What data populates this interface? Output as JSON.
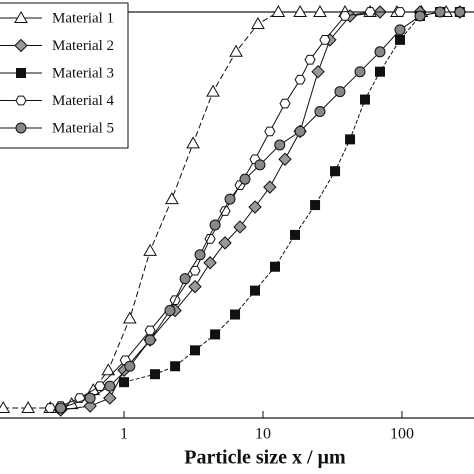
{
  "chart_data": {
    "type": "line",
    "x_label": "Particle size x / µm",
    "xscale": "log",
    "xlim": [
      0.128,
      330
    ],
    "ylim": [
      -2,
      100
    ],
    "xticks": [
      1,
      10,
      100
    ],
    "legend": "upper left",
    "series": [
      {
        "name": "Material 1",
        "color": "#ffffff",
        "marker": "triangle",
        "x": [
          0.135,
          0.204,
          0.294,
          0.42,
          0.6,
          0.77,
          1.1,
          1.54,
          2.21,
          3.14,
          4.37,
          6.4,
          9.2,
          12.9,
          18.5,
          25.7,
          38.9,
          59,
          92,
          138,
          208
        ],
        "values": [
          0.5,
          0.5,
          0.5,
          1.5,
          5,
          10,
          23,
          40,
          53,
          67,
          80,
          90,
          97,
          100,
          100,
          100,
          100,
          100,
          100,
          100,
          100
        ]
      },
      {
        "name": "Material 2",
        "color": "#999999",
        "marker": "diamond",
        "x": [
          0.35,
          0.57,
          0.79,
          1.0,
          1.54,
          2.33,
          3.24,
          4.16,
          5.33,
          6.83,
          8.76,
          11.2,
          14.4,
          18.5,
          24.9,
          30.3,
          42.3,
          69.5,
          135,
          261
        ],
        "values": [
          0,
          1,
          3,
          10,
          17.6,
          25,
          31,
          37,
          42,
          46,
          51,
          56,
          63,
          70,
          85,
          93,
          99,
          100,
          100,
          100
        ]
      },
      {
        "name": "Material 3",
        "color": "#111111",
        "marker": "square",
        "x": [
          1.0,
          1.67,
          2.33,
          3.24,
          4.52,
          6.29,
          8.76,
          12.2,
          17.0,
          23.7,
          33.0,
          42.3,
          54.2,
          69.5,
          96.8,
          135,
          188,
          261
        ],
        "values": [
          7,
          9,
          11,
          15,
          19,
          24,
          30,
          36,
          44,
          51.5,
          60,
          68,
          78,
          85,
          93,
          99,
          100,
          100
        ]
      },
      {
        "name": "Material 4",
        "color": "#ffffff",
        "marker": "hexagon",
        "x": [
          0.294,
          0.35,
          0.48,
          0.67,
          1.02,
          1.54,
          2.33,
          3.24,
          4.16,
          5.33,
          6.83,
          8.76,
          11.2,
          14.4,
          18.5,
          21.8,
          27.9,
          38.9,
          59,
          96.8,
          188
        ],
        "values": [
          0.5,
          1,
          3,
          6,
          12.5,
          20,
          27.6,
          35,
          43,
          50,
          56.5,
          63,
          70,
          77,
          83,
          88,
          93,
          99,
          100,
          100,
          100
        ]
      },
      {
        "name": "Material 5",
        "color": "#888888",
        "marker": "circle",
        "x": [
          0.35,
          0.57,
          0.79,
          1.1,
          1.54,
          2.14,
          2.75,
          3.52,
          4.52,
          5.79,
          7.42,
          9.51,
          13.2,
          18.5,
          25.7,
          35.8,
          49.9,
          69.5,
          96.8,
          135,
          188,
          261
        ],
        "values": [
          0.5,
          3,
          6,
          11,
          17.6,
          25,
          33,
          39,
          46.5,
          53,
          58,
          61.6,
          66.6,
          70,
          75,
          80,
          85,
          90,
          95.5,
          99,
          100,
          100
        ]
      }
    ]
  }
}
